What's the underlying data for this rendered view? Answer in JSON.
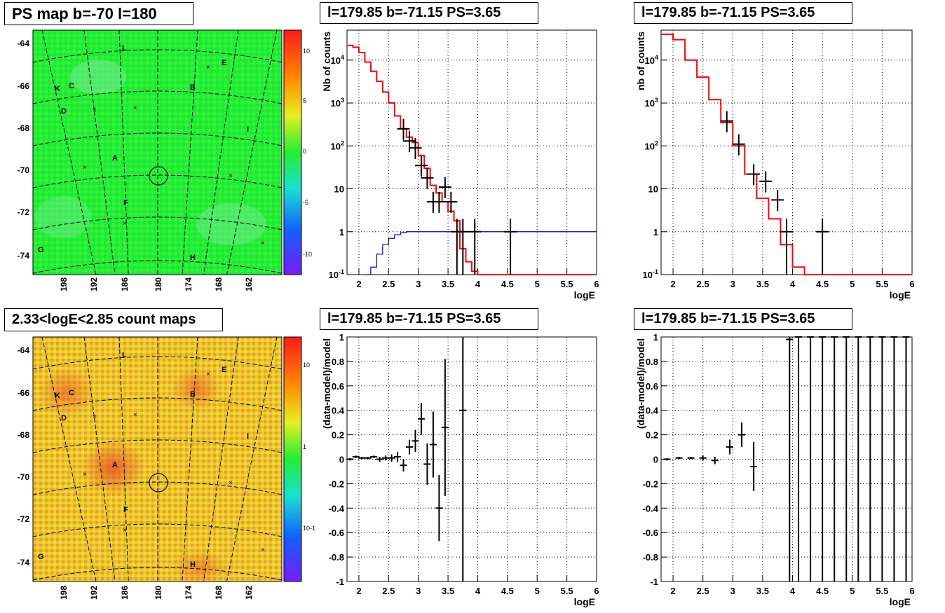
{
  "panels": {
    "p1": {
      "title": "PS map b=-70 l=180"
    },
    "p2": {
      "title": "l=179.85 b=-71.15 PS=3.65"
    },
    "p3": {
      "title": "l=179.85 b=-71.15 PS=3.65"
    },
    "p4": {
      "title": "2.33<logE<2.85 count maps"
    },
    "p5": {
      "title": "l=179.85 b=-71.15 PS=3.65"
    },
    "p6": {
      "title": "l=179.85 b=-71.15 PS=3.65"
    }
  },
  "maps": {
    "y_ticks": [
      "-64",
      "-66",
      "-68",
      "-70",
      "-72",
      "-74"
    ],
    "x_ticks": [
      "198",
      "192",
      "186",
      "180",
      "174",
      "168",
      "162"
    ],
    "labels": [
      "L",
      "E",
      "K",
      "C",
      "B",
      "D",
      "I",
      "A",
      "F",
      "G",
      "H"
    ],
    "ps_colorbar_ticks": [
      "10",
      "5",
      "0",
      "-5",
      "-10"
    ],
    "count_colorbar_ticks": [
      "10",
      "1",
      "10-1"
    ]
  },
  "colors": {
    "data": "#000000",
    "model": "#ff0000",
    "efficiency": "#0000cc",
    "map_green": "#22ee33",
    "map_orange": "#f4c430"
  },
  "chart_data": [
    {
      "type": "line",
      "panel": "top-middle",
      "title": "l=179.85 b=-71.15 PS=3.65",
      "xlabel": "logE",
      "ylabel": "Nb of counts",
      "xlim": [
        1.8,
        6
      ],
      "ylim": [
        0.1,
        50000
      ],
      "yscale": "log",
      "x_ticks": [
        "2",
        "2.5",
        "3",
        "3.5",
        "4",
        "4.5",
        "5",
        "5.5",
        "6"
      ],
      "y_ticks": [
        "10^-1",
        "1",
        "10",
        "10^2",
        "10^3",
        "10^4"
      ],
      "series": [
        {
          "role": "data-points",
          "x": [
            2.75,
            2.85,
            2.95,
            3.05,
            3.15,
            3.25,
            3.35,
            3.45,
            3.55,
            3.65,
            3.75,
            3.95,
            4.55
          ],
          "y": [
            250,
            130,
            90,
            35,
            18,
            5,
            5,
            11,
            5,
            1,
            1,
            1,
            1
          ]
        },
        {
          "role": "model-step",
          "edges": [
            1.8,
            1.9,
            2.0,
            2.1,
            2.2,
            2.3,
            2.4,
            2.5,
            2.6,
            2.7,
            2.8,
            2.9,
            3.0,
            3.1,
            3.2,
            3.3,
            3.4,
            3.5,
            3.6,
            3.7,
            3.8,
            3.9,
            4.0,
            6.0
          ],
          "values": [
            22000,
            20000,
            15000,
            9000,
            5500,
            3200,
            1800,
            1000,
            500,
            250,
            160,
            120,
            60,
            30,
            12,
            8,
            5,
            3,
            1.8,
            0.4,
            0.2,
            0.12,
            0.1
          ]
        },
        {
          "role": "efficiency-step",
          "edges": [
            2.1,
            2.2,
            2.3,
            2.4,
            2.5,
            2.6,
            2.7,
            2.8,
            2.9,
            3.0,
            6.0
          ],
          "values": [
            0.1,
            0.15,
            0.3,
            0.5,
            0.7,
            0.85,
            0.95,
            1,
            1,
            1
          ]
        }
      ]
    },
    {
      "type": "line",
      "panel": "top-right",
      "title": "l=179.85 b=-71.15 PS=3.65",
      "xlabel": "logE",
      "ylabel": "nb of counts",
      "xlim": [
        1.8,
        6
      ],
      "ylim": [
        0.1,
        50000
      ],
      "yscale": "log",
      "x_ticks": [
        "2",
        "2.5",
        "3",
        "3.5",
        "4",
        "4.5",
        "5",
        "5.5",
        "6"
      ],
      "y_ticks": [
        "10^-1",
        "1",
        "10",
        "10^2",
        "10^3",
        "10^4"
      ],
      "series": [
        {
          "role": "data-points",
          "x": [
            2.9,
            3.1,
            3.35,
            3.55,
            3.75,
            3.9,
            4.5
          ],
          "y": [
            380,
            110,
            22,
            15,
            5.5,
            1,
            1
          ]
        },
        {
          "role": "model-step",
          "edges": [
            1.8,
            2.0,
            2.2,
            2.4,
            2.6,
            2.8,
            3.0,
            3.2,
            3.4,
            3.6,
            3.8,
            4.0,
            4.2,
            6.0
          ],
          "values": [
            40000,
            30000,
            10000,
            4000,
            1200,
            350,
            100,
            22,
            6,
            2,
            0.5,
            0.15,
            0.1
          ]
        }
      ]
    },
    {
      "type": "scatter",
      "panel": "bottom-middle",
      "title": "l=179.85 b=-71.15 PS=3.65",
      "xlabel": "logE",
      "ylabel": "(data-model)/model",
      "xlim": [
        1.8,
        6
      ],
      "ylim": [
        -1,
        1
      ],
      "x_ticks": [
        "2",
        "2.5",
        "3",
        "3.5",
        "4",
        "4.5",
        "5",
        "5.5",
        "6"
      ],
      "y_ticks": [
        "-1",
        "-0.8",
        "-0.6",
        "-0.4",
        "-0.2",
        "0",
        "0.2",
        "0.4",
        "0.6",
        "0.8",
        "1"
      ],
      "x": [
        1.85,
        1.95,
        2.05,
        2.15,
        2.25,
        2.35,
        2.45,
        2.55,
        2.65,
        2.75,
        2.85,
        2.95,
        3.05,
        3.15,
        3.25,
        3.35,
        3.45,
        3.75
      ],
      "y": [
        0,
        0.02,
        0.01,
        0.01,
        0.02,
        0,
        0.01,
        0.01,
        0.02,
        -0.05,
        0.1,
        0.15,
        0.33,
        -0.04,
        0.12,
        -0.4,
        0.26,
        0.4
      ],
      "err": [
        0.01,
        0.01,
        0.01,
        0.01,
        0.01,
        0.02,
        0.02,
        0.03,
        0.04,
        0.05,
        0.06,
        0.09,
        0.13,
        0.17,
        0.27,
        0.27,
        0.56,
        1.4
      ]
    },
    {
      "type": "scatter",
      "panel": "bottom-right",
      "title": "l=179.85 b=-71.15 PS=3.65",
      "xlabel": "logE",
      "ylabel": "(data-model)/model",
      "xlim": [
        1.8,
        6
      ],
      "ylim": [
        -1,
        1
      ],
      "x_ticks": [
        "2",
        "2.5",
        "3",
        "3.5",
        "4",
        "4.5",
        "5",
        "5.5",
        "6"
      ],
      "y_ticks": [
        "-1",
        "-0.8",
        "-0.6",
        "-0.4",
        "-0.2",
        "0",
        "0.2",
        "0.4",
        "0.6",
        "0.8",
        "1"
      ],
      "x": [
        1.9,
        2.1,
        2.3,
        2.5,
        2.7,
        2.95,
        3.15,
        3.35,
        3.95,
        4.1,
        4.3,
        4.5,
        4.7,
        4.9,
        5.1,
        5.3,
        5.5,
        5.7,
        5.9
      ],
      "y": [
        0,
        0.01,
        0.01,
        0.01,
        -0.01,
        0.1,
        0.2,
        -0.06,
        0.98,
        1,
        1,
        1,
        1,
        1,
        1,
        1,
        1,
        1,
        1
      ],
      "err": [
        0.01,
        0.01,
        0.01,
        0.02,
        0.03,
        0.06,
        0.1,
        0.2,
        2,
        2,
        2,
        2,
        2,
        2,
        2,
        2,
        2,
        2,
        2
      ]
    }
  ]
}
